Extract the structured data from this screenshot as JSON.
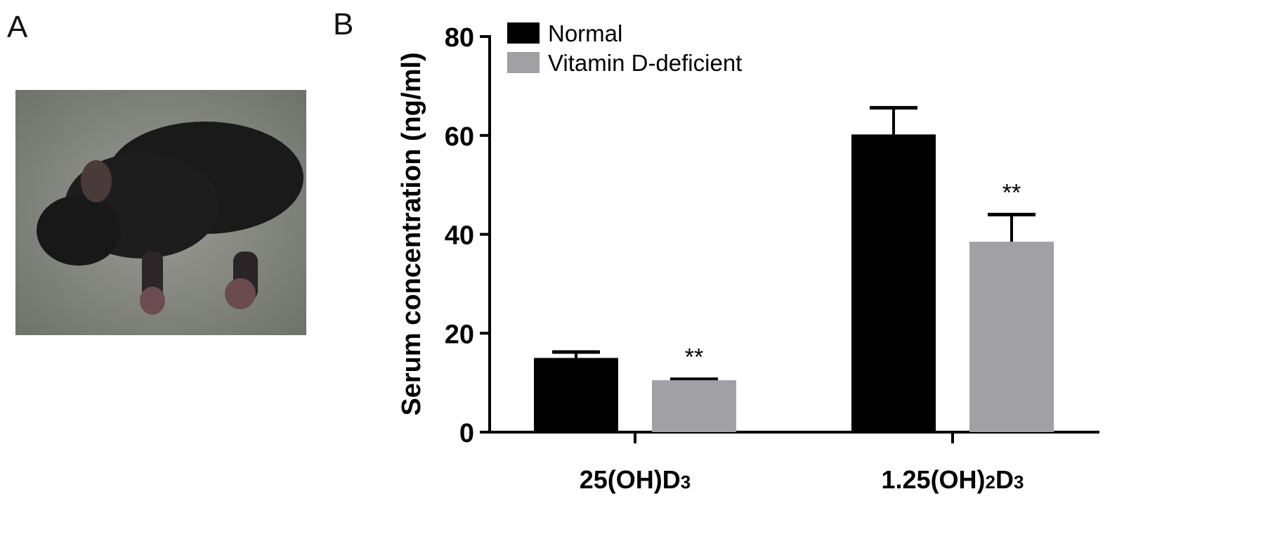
{
  "panels": {
    "a_label": "A",
    "b_label": "B"
  },
  "photo": {
    "subject": "mouse photograph"
  },
  "chart_data": {
    "type": "bar",
    "title": "",
    "xlabel": "",
    "ylabel": "Serum concentration (ng/ml)",
    "ylim": [
      0,
      80
    ],
    "yticks": [
      0,
      20,
      40,
      60,
      80
    ],
    "categories": [
      "25(OH)D3",
      "1.25(OH)2D3"
    ],
    "category_labels": [
      {
        "main": "25(OH)D",
        "sub": "3",
        "tail": ""
      },
      {
        "main": "1.25(OH)",
        "sub": "2",
        "tail": "D",
        "sub2": "3"
      }
    ],
    "series": [
      {
        "name": "Normal",
        "color": "#000000",
        "values": [
          15.0,
          60.2
        ],
        "errors": [
          1.2,
          5.4
        ],
        "annotations": [
          "",
          ""
        ]
      },
      {
        "name": "Vitamin D-deficient",
        "color": "#a0a0a5",
        "values": [
          10.5,
          38.5
        ],
        "errors": [
          0.2,
          5.5
        ],
        "annotations": [
          "**",
          "**"
        ]
      }
    ],
    "legend": "top-left",
    "grid": false
  }
}
